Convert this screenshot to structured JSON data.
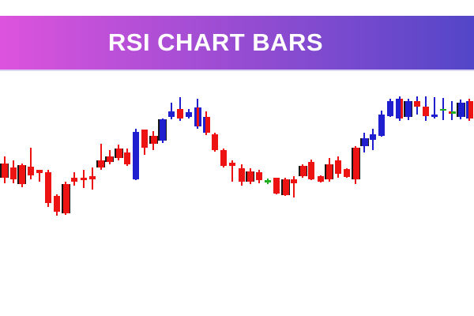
{
  "banner": {
    "title": "RSI CHART BARS",
    "gradient_from": "#dd53dd",
    "gradient_to": "#5346c8",
    "text_color": "#ffffff"
  },
  "chart_data": {
    "type": "candlestick",
    "title": "RSI CHART BARS",
    "xlabel": "",
    "ylabel": "",
    "axes_visible": false,
    "grid": false,
    "background": "#ffffff",
    "price_unit": "relative",
    "ylim": [
      20,
      190
    ],
    "colors": {
      "red": "#ed1313",
      "blue": "#1f1fd0",
      "green": "#1fae1f",
      "outline": "#161616",
      "background": "#ffffff"
    },
    "legend": [],
    "candles": [
      {
        "o": 93,
        "h": 102,
        "l": 68,
        "c": 75,
        "col": "red",
        "ol": 1
      },
      {
        "o": 88,
        "h": 97,
        "l": 68,
        "c": 73,
        "col": "red"
      },
      {
        "o": 91,
        "h": 93,
        "l": 63,
        "c": 67,
        "col": "red",
        "ol": 1
      },
      {
        "o": 89,
        "h": 113,
        "l": 73,
        "c": 78,
        "col": "red"
      },
      {
        "o": 85,
        "h": 85,
        "l": 70,
        "c": 81,
        "col": "red"
      },
      {
        "o": 82,
        "h": 85,
        "l": 38,
        "c": 43,
        "col": "red"
      },
      {
        "o": 52,
        "h": 54,
        "l": 27,
        "c": 32,
        "col": "red"
      },
      {
        "o": 67,
        "h": 70,
        "l": 28,
        "c": 30,
        "col": "red",
        "ol": 1
      },
      {
        "o": 75,
        "h": 82,
        "l": 65,
        "c": 70,
        "col": "red"
      },
      {
        "o": 75,
        "h": 85,
        "l": 62,
        "c": 72,
        "col": "red"
      },
      {
        "o": 77,
        "h": 88,
        "l": 60,
        "c": 73,
        "col": "red"
      },
      {
        "o": 97,
        "h": 118,
        "l": 85,
        "c": 88,
        "col": "red",
        "ol": 1
      },
      {
        "o": 102,
        "h": 110,
        "l": 92,
        "c": 95,
        "col": "red",
        "ol": 1
      },
      {
        "o": 112,
        "h": 117,
        "l": 97,
        "c": 100,
        "col": "red",
        "ol": 1
      },
      {
        "o": 107,
        "h": 112,
        "l": 90,
        "c": 92,
        "col": "red"
      },
      {
        "o": 73,
        "h": 137,
        "l": 72,
        "c": 133,
        "col": "blue"
      },
      {
        "o": 136,
        "h": 136,
        "l": 104,
        "c": 113,
        "col": "red"
      },
      {
        "o": 128,
        "h": 134,
        "l": 110,
        "c": 118,
        "col": "red",
        "ol": 1
      },
      {
        "o": 122,
        "h": 150,
        "l": 119,
        "c": 149,
        "col": "blue",
        "ol": 1
      },
      {
        "o": 152,
        "h": 170,
        "l": 149,
        "c": 159,
        "col": "blue"
      },
      {
        "o": 162,
        "h": 177,
        "l": 147,
        "c": 150,
        "col": "red",
        "wk": "blue"
      },
      {
        "o": 152,
        "h": 162,
        "l": 150,
        "c": 158,
        "col": "blue"
      },
      {
        "o": 140,
        "h": 175,
        "l": 137,
        "c": 164,
        "col": "blue",
        "acc": "red",
        "accSide": "center"
      },
      {
        "o": 152,
        "h": 159,
        "l": 129,
        "c": 132,
        "col": "red",
        "acc": "blue",
        "accSide": "left"
      },
      {
        "o": 130,
        "h": 132,
        "l": 108,
        "c": 110,
        "col": "red"
      },
      {
        "o": 110,
        "h": 112,
        "l": 88,
        "c": 90,
        "col": "red"
      },
      {
        "o": 94,
        "h": 97,
        "l": 70,
        "c": 90,
        "col": "red"
      },
      {
        "o": 87,
        "h": 92,
        "l": 65,
        "c": 70,
        "col": "red"
      },
      {
        "o": 83,
        "h": 87,
        "l": 67,
        "c": 70,
        "col": "red",
        "ol": 1
      },
      {
        "o": 82,
        "h": 85,
        "l": 68,
        "c": 72,
        "col": "red"
      },
      {
        "o": 72,
        "h": 74,
        "l": 67,
        "c": 69,
        "col": "green"
      },
      {
        "o": 75,
        "h": 75,
        "l": 54,
        "c": 55,
        "col": "red"
      },
      {
        "o": 73,
        "h": 75,
        "l": 52,
        "c": 53,
        "col": "red",
        "ol": 1
      },
      {
        "o": 73,
        "h": 77,
        "l": 50,
        "c": 68,
        "col": "red"
      },
      {
        "o": 90,
        "h": 92,
        "l": 75,
        "c": 77,
        "col": "red",
        "ol": 1
      },
      {
        "o": 95,
        "h": 98,
        "l": 72,
        "c": 73,
        "col": "red"
      },
      {
        "o": 77,
        "h": 78,
        "l": 69,
        "c": 70,
        "col": "red"
      },
      {
        "o": 92,
        "h": 100,
        "l": 70,
        "c": 73,
        "col": "red",
        "ol": 1
      },
      {
        "o": 97,
        "h": 102,
        "l": 75,
        "c": 80,
        "col": "red"
      },
      {
        "o": 86,
        "h": 87,
        "l": 75,
        "c": 76,
        "col": "red"
      },
      {
        "o": 113,
        "h": 115,
        "l": 67,
        "c": 73,
        "col": "red",
        "ol": 1
      },
      {
        "o": 115,
        "h": 132,
        "l": 107,
        "c": 125,
        "col": "blue",
        "ol": 1
      },
      {
        "o": 123,
        "h": 137,
        "l": 110,
        "c": 130,
        "col": "blue"
      },
      {
        "o": 128,
        "h": 160,
        "l": 127,
        "c": 155,
        "col": "blue"
      },
      {
        "o": 153,
        "h": 175,
        "l": 152,
        "c": 172,
        "col": "blue"
      },
      {
        "o": 150,
        "h": 178,
        "l": 147,
        "c": 175,
        "col": "blue",
        "acc": "red",
        "accSide": "right"
      },
      {
        "o": 152,
        "h": 175,
        "l": 148,
        "c": 172,
        "col": "blue",
        "ol": 1
      },
      {
        "o": 172,
        "h": 178,
        "l": 155,
        "c": 165,
        "col": "red",
        "wk": "blue"
      },
      {
        "o": 165,
        "h": 178,
        "l": 147,
        "c": 153,
        "col": "red",
        "wk": "blue"
      },
      {
        "o": 152,
        "h": 177,
        "l": 150,
        "c": 155,
        "col": "blue"
      },
      {
        "o": 160,
        "h": 176,
        "l": 148,
        "c": 162,
        "col": "green",
        "wk": "blue"
      },
      {
        "o": 156,
        "h": 172,
        "l": 148,
        "c": 159,
        "col": "green",
        "wk": "blue",
        "acc": "red",
        "accSide": "left"
      },
      {
        "o": 152,
        "h": 174,
        "l": 149,
        "c": 170,
        "col": "blue",
        "ol": 1
      },
      {
        "o": 172,
        "h": 175,
        "l": 147,
        "c": 150,
        "col": "red",
        "acc": "blue",
        "accSide": "left"
      }
    ]
  }
}
